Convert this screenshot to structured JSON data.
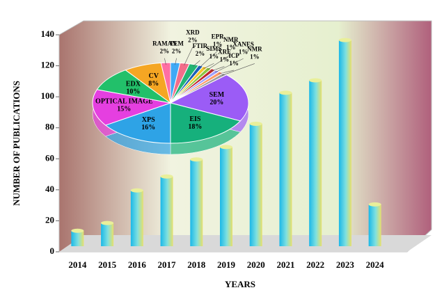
{
  "chart_data": [
    {
      "type": "bar",
      "x_label": "YEARS",
      "y_label": "NUMBER OF PUBLICATIONS",
      "categories": [
        "2014",
        "2015",
        "2016",
        "2017",
        "2018",
        "2019",
        "2020",
        "2021",
        "2022",
        "2023",
        "2024"
      ],
      "values": [
        10,
        15,
        36,
        45,
        56,
        64,
        79,
        99,
        107,
        133,
        27
      ],
      "color": "#2ec4e8",
      "ylim": [
        0,
        140
      ],
      "yticks": [
        0,
        20,
        40,
        60,
        80,
        100,
        120,
        140
      ]
    },
    {
      "type": "pie",
      "categories": [
        "TEM",
        "XRD",
        "FTIR",
        "EPR",
        "SIMS",
        "NMR",
        "XRF",
        "XANES",
        "ICP",
        "NMR",
        "SEM",
        "EIS",
        "XPS",
        "OPTICAL IMAGE",
        "EDX",
        "CV",
        "RAMAN"
      ],
      "values": [
        2,
        2,
        2,
        1,
        1,
        1,
        1,
        1,
        1,
        1,
        20,
        18,
        16,
        15,
        10,
        8,
        2
      ],
      "value_labels": [
        "2%",
        "2%",
        "2%",
        "1%",
        "1%",
        "1%",
        "1%",
        "1%",
        "1%",
        "1%",
        "20%",
        "18%",
        "16%",
        "15%",
        "10%",
        "8%",
        "2%"
      ],
      "colors": [
        "#3fa9f5",
        "#f26d8a",
        "#22b573",
        "#1c5fb8",
        "#f7c631",
        "#8cc63f",
        "#c1272d",
        "#a0a0ff",
        "#ff9966",
        "#9e9e9e",
        "#9b5cf6",
        "#16b07c",
        "#2ea3e6",
        "#e53fe0",
        "#22c06a",
        "#f5a623",
        "#ff6fa3"
      ]
    }
  ]
}
